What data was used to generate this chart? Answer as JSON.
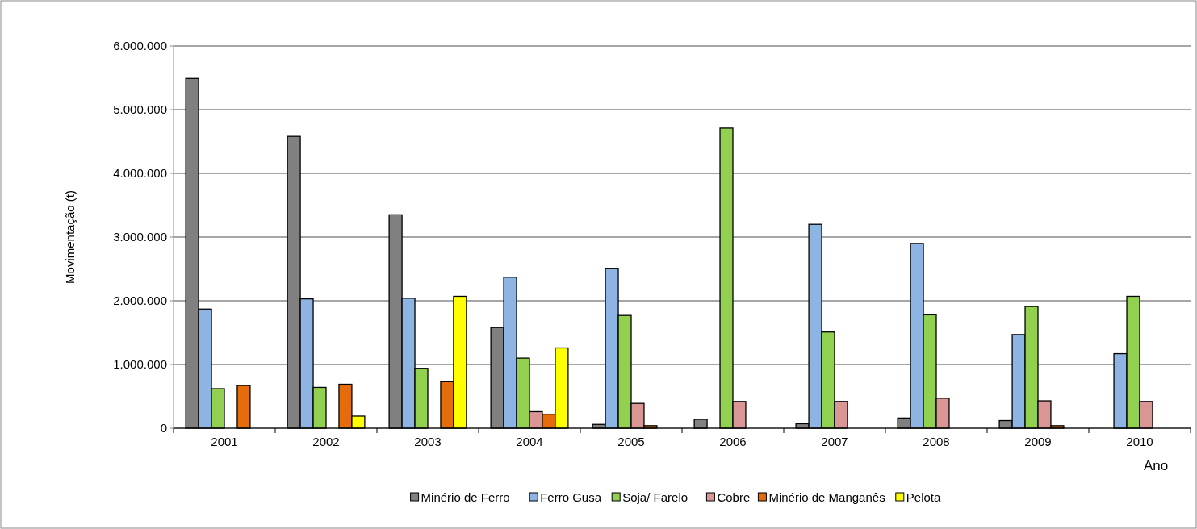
{
  "chart_data": {
    "type": "bar",
    "ylabel": "Movimentação (t)",
    "xlabel": "Ano",
    "categories": [
      "2001",
      "2002",
      "2003",
      "2004",
      "2005",
      "2006",
      "2007",
      "2008",
      "2009",
      "2010"
    ],
    "series": [
      {
        "name": "Minério de Ferro",
        "color": "#808080",
        "values": [
          5490000,
          4580000,
          3350000,
          1580000,
          60000,
          140000,
          70000,
          160000,
          120000,
          null
        ]
      },
      {
        "name": "Ferro Gusa",
        "color": "#8eb4e3",
        "values": [
          1870000,
          2030000,
          2040000,
          2370000,
          2510000,
          null,
          3200000,
          2900000,
          1470000,
          1170000
        ]
      },
      {
        "name": "Soja/ Farelo",
        "color": "#92d050",
        "values": [
          620000,
          640000,
          940000,
          1100000,
          1770000,
          4710000,
          1510000,
          1780000,
          1910000,
          2070000
        ]
      },
      {
        "name": "Cobre",
        "color": "#d99694",
        "values": [
          null,
          null,
          null,
          260000,
          390000,
          420000,
          420000,
          470000,
          430000,
          420000
        ]
      },
      {
        "name": "Minério de Manganês",
        "color": "#e46c0a",
        "values": [
          670000,
          690000,
          730000,
          220000,
          40000,
          null,
          null,
          null,
          40000,
          null
        ]
      },
      {
        "name": "Pelota",
        "color": "#ffff00",
        "values": [
          null,
          190000,
          2070000,
          1260000,
          null,
          null,
          null,
          null,
          null,
          null
        ]
      }
    ],
    "ylim": [
      0,
      6000000
    ],
    "yticks": [
      {
        "value": 0,
        "label": "0"
      },
      {
        "value": 1000000,
        "label": "1.000.000"
      },
      {
        "value": 2000000,
        "label": "2.000.000"
      },
      {
        "value": 3000000,
        "label": "3.000.000"
      },
      {
        "value": 4000000,
        "label": "4.000.000"
      },
      {
        "value": 5000000,
        "label": "5.000.000"
      },
      {
        "value": 6000000,
        "label": "6.000.000"
      }
    ],
    "grid": "y",
    "legend": "bottom"
  }
}
